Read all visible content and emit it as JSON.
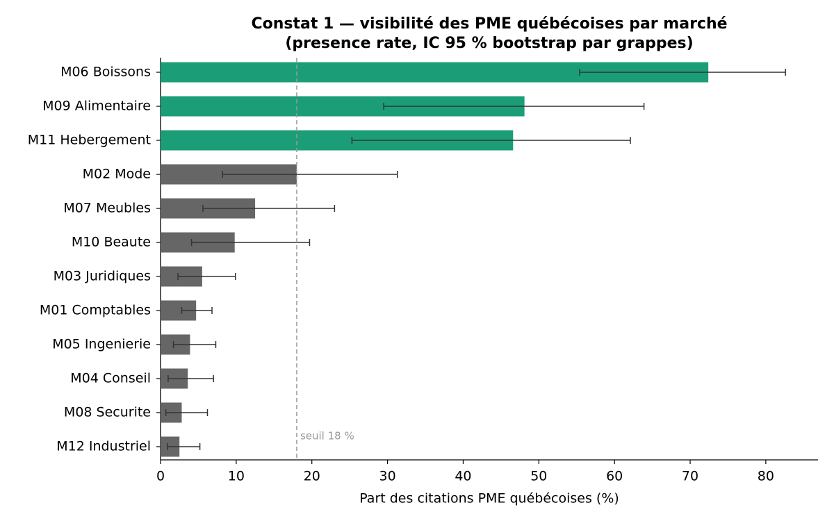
{
  "chart_data": {
    "type": "bar",
    "orientation": "horizontal",
    "title": "Constat 1 — visibilité des PME québécoises par marché",
    "subtitle": "(presence rate, IC 95 % bootstrap par grappes)",
    "x_label": "Part des citations PME québécoises (%)",
    "categories": [
      "M06 Boissons",
      "M09 Alimentaire",
      "M11 Hebergement",
      "M02 Mode",
      "M07 Meubles",
      "M10 Beaute",
      "M03 Juridiques",
      "M01 Comptables",
      "M05 Ingenierie",
      "M04 Conseil",
      "M08 Securite",
      "M12 Industriel"
    ],
    "values": [
      72.4,
      48.1,
      46.6,
      18.0,
      12.5,
      9.8,
      5.5,
      4.7,
      3.9,
      3.6,
      2.8,
      2.5
    ],
    "ci_low": [
      55.4,
      29.5,
      25.3,
      8.2,
      5.6,
      4.1,
      2.3,
      2.8,
      1.7,
      1.0,
      0.7,
      0.9
    ],
    "ci_high": [
      82.6,
      63.9,
      62.1,
      31.3,
      23.0,
      19.7,
      9.9,
      6.8,
      7.3,
      7.0,
      6.2,
      5.2
    ],
    "colors": [
      "#1b9e77",
      "#1b9e77",
      "#1b9e77",
      "#666666",
      "#666666",
      "#666666",
      "#666666",
      "#666666",
      "#666666",
      "#666666",
      "#666666",
      "#666666"
    ],
    "threshold": {
      "value": 18,
      "label": "seuil 18 %"
    },
    "xlim": [
      0,
      86.9
    ],
    "xticks": [
      0,
      10,
      20,
      30,
      40,
      50,
      60,
      70,
      80
    ],
    "grid": false
  }
}
